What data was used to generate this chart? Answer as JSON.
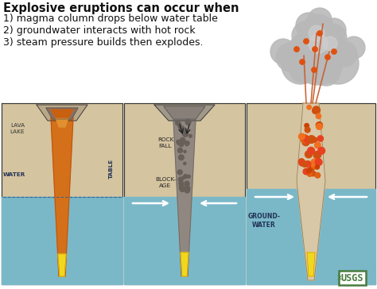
{
  "title": "Explosive eruptions can occur when",
  "subtitle_lines": [
    "1) magma column drops below water table",
    "2) groundwater interacts with hot rock",
    "3) steam pressure builds then explodes."
  ],
  "bg_color": "#ffffff",
  "title_color": "#111111",
  "title_fontsize": 10.5,
  "subtitle_fontsize": 9.0,
  "ground_color": "#d4c4a0",
  "ground_dark": "#c0b090",
  "water_color": "#7ab8c8",
  "water_light": "#a8d0dc",
  "lava_color": "#d4701a",
  "lava_dark": "#b85010",
  "lava_hot_color": "#f0d820",
  "rock_gray": "#908880",
  "rock_dark": "#706860",
  "smoke_color": "#b8b8b8",
  "smoke_light": "#d0d0d0",
  "jet_color": "#c86030",
  "bomb_colors": [
    "#e06010",
    "#f07020",
    "#cc4000",
    "#e84020",
    "#d05010"
  ],
  "usgs_green": "#4a7c3f",
  "label_dark": "#223355",
  "outline_color": "#333333"
}
